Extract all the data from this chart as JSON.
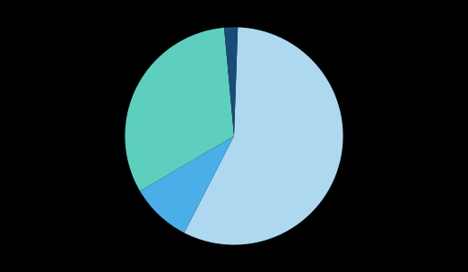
{
  "slices": [
    57.0,
    9.0,
    32.0,
    2.0
  ],
  "colors": [
    "#add8f0",
    "#4aaee8",
    "#5ecfbf",
    "#1a4a7a"
  ],
  "background_color": "#000000",
  "startangle": 88,
  "figsize": [
    5.22,
    3.04
  ],
  "dpi": 100
}
